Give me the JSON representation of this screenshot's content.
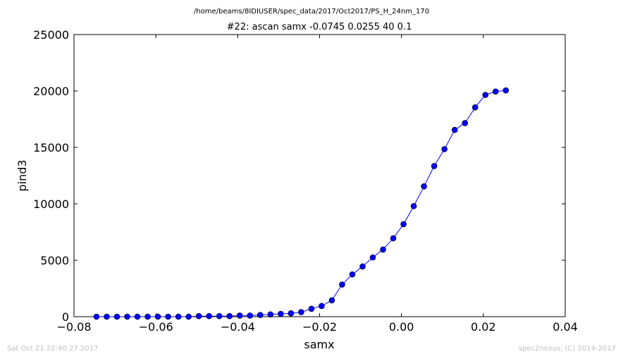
{
  "header": {
    "file_path": "/home/beams/8IDIUSER/spec_data/2017/Oct2017/PS_H_24nm_170",
    "scan_title": "#22: ascan  samx -0.0745 0.0255  40 0.1"
  },
  "footer": {
    "timestamp": "Sat Oct 21 22:40:27 2017",
    "credit": "spec2nexus, (C) 2014-2017"
  },
  "chart_data": {
    "type": "line",
    "title": "#22: ascan  samx -0.0745 0.0255  40 0.1",
    "xlabel": "samx",
    "ylabel": "pind3",
    "xlim": [
      -0.08,
      0.04
    ],
    "ylim": [
      0,
      25000
    ],
    "xticks": [
      -0.08,
      -0.06,
      -0.04,
      -0.02,
      0.0,
      0.02,
      0.04
    ],
    "xtick_labels": [
      "−0.08",
      "−0.06",
      "−0.04",
      "−0.02",
      "0.00",
      "0.02",
      "0.04"
    ],
    "yticks": [
      0,
      5000,
      10000,
      15000,
      20000,
      25000
    ],
    "ytick_labels": [
      "0",
      "5000",
      "10000",
      "15000",
      "20000",
      "25000"
    ],
    "grid": false,
    "series": [
      {
        "color": "#0000ff",
        "marker": "circle",
        "x": [
          -0.0745,
          -0.072,
          -0.0695,
          -0.067,
          -0.0645,
          -0.062,
          -0.0595,
          -0.057,
          -0.0545,
          -0.052,
          -0.0495,
          -0.047,
          -0.0445,
          -0.042,
          -0.0395,
          -0.037,
          -0.0345,
          -0.032,
          -0.0295,
          -0.027,
          -0.0245,
          -0.022,
          -0.0195,
          -0.017,
          -0.0145,
          -0.012,
          -0.0095,
          -0.007,
          -0.0045,
          -0.002,
          0.0005,
          0.003,
          0.0055,
          0.008,
          0.0105,
          0.013,
          0.0155,
          0.018,
          0.0205,
          0.023,
          0.0255
        ],
        "y": [
          0,
          0,
          0,
          0,
          0,
          0,
          0,
          0,
          0,
          0,
          50,
          50,
          50,
          50,
          100,
          100,
          150,
          200,
          250,
          300,
          400,
          700,
          950,
          1450,
          2850,
          3750,
          4450,
          5250,
          5950,
          6950,
          8200,
          9800,
          11550,
          13350,
          14850,
          16550,
          17150,
          18550,
          19650,
          19950,
          20050
        ]
      }
    ]
  }
}
